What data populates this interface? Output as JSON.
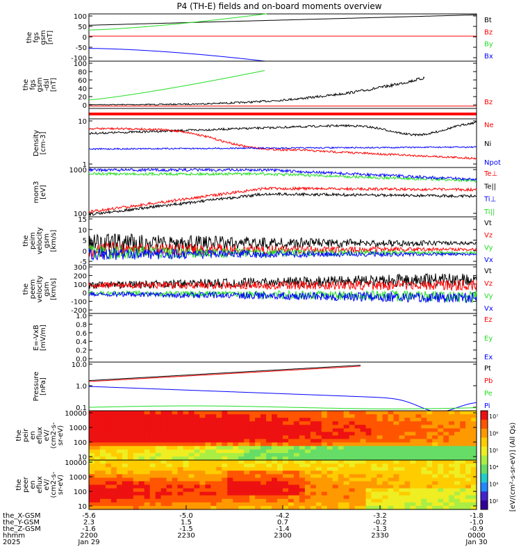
{
  "title": "P4 (TH-E) fields and on-board moments overview",
  "colors": {
    "black": "#000000",
    "red": "#ff0000",
    "green": "#22dd22",
    "blue": "#0000ff"
  },
  "chart_data": [
    {
      "type": "line",
      "ylabel": [
        "the",
        "fgs",
        "gsm",
        "[nT]"
      ],
      "yticks": [
        "100",
        "50",
        "0",
        "-50",
        "-100"
      ],
      "ylim": [
        -100,
        100
      ],
      "legend": [
        {
          "label": "Bt",
          "color": "black"
        },
        {
          "label": "Bz",
          "color": "red"
        },
        {
          "label": "By",
          "color": "green"
        },
        {
          "label": "Bx",
          "color": "blue"
        }
      ]
    },
    {
      "type": "line",
      "ylabel": [
        "the",
        "fgs",
        "gsm",
        "-dsl",
        "[nT]"
      ],
      "yticks": [
        "100",
        "80",
        "60",
        "40",
        "20",
        "0"
      ],
      "ylim": [
        -5,
        110
      ],
      "legend": [
        {
          "label": "Bz",
          "color": "red"
        }
      ]
    },
    {
      "type": "line",
      "ylabel": [
        "Density",
        "[cm-3]"
      ],
      "yticks": [
        "10",
        "1"
      ],
      "scale": "log",
      "legend": [
        {
          "label": "Ne",
          "color": "red"
        },
        {
          "label": "Ni",
          "color": "black"
        },
        {
          "label": "Npot",
          "color": "blue"
        }
      ]
    },
    {
      "type": "line",
      "ylabel": [
        "mom3",
        "[eV]"
      ],
      "yticks": [
        "1000",
        "100"
      ],
      "scale": "log",
      "legend": [
        {
          "label": "Te⊥",
          "color": "red"
        },
        {
          "label": "Te||",
          "color": "black"
        },
        {
          "label": "Ti⊥",
          "color": "blue"
        },
        {
          "label": "Ti||",
          "color": "green"
        }
      ]
    },
    {
      "type": "line",
      "ylabel": [
        "the",
        "peim",
        "velocity",
        "gsm",
        "[km/s]"
      ],
      "yticks": [
        "15",
        "10",
        "5",
        "0",
        "-5"
      ],
      "ylim": [
        -5,
        17
      ],
      "legend": [
        {
          "label": "Vt",
          "color": "black"
        },
        {
          "label": "Vz",
          "color": "red"
        },
        {
          "label": "Vy",
          "color": "green"
        },
        {
          "label": "Vx",
          "color": "blue"
        }
      ]
    },
    {
      "type": "line",
      "ylabel": [
        "the",
        "peem",
        "velocity",
        "gsm",
        "[km/s]"
      ],
      "yticks": [
        "300",
        "200",
        "100",
        "0",
        "-100",
        "-200"
      ],
      "ylim": [
        -250,
        320
      ],
      "legend": [
        {
          "label": "Vt",
          "color": "black"
        },
        {
          "label": "Vz",
          "color": "red"
        },
        {
          "label": "Vy",
          "color": "green"
        },
        {
          "label": "Vx",
          "color": "blue"
        }
      ]
    },
    {
      "type": "line",
      "ylabel": [
        "E=-VxB",
        "[mV/m]"
      ],
      "yticks": [
        "1.0",
        "0.8",
        "0.6",
        "0.4",
        "0.2",
        "0.0"
      ],
      "ylim": [
        0,
        1
      ],
      "legend": [
        {
          "label": "Ez",
          "color": "red"
        },
        {
          "label": "Ey",
          "color": "green"
        },
        {
          "label": "Ex",
          "color": "blue"
        }
      ]
    },
    {
      "type": "line",
      "ylabel": [
        "Pressure",
        "[nPa]"
      ],
      "yticks": [
        "10.0",
        "1.0",
        "0.1"
      ],
      "scale": "log",
      "legend": [
        {
          "label": "Pt",
          "color": "black"
        },
        {
          "label": "Pb",
          "color": "red"
        },
        {
          "label": "Pe",
          "color": "green"
        },
        {
          "label": "Pi",
          "color": "blue"
        }
      ]
    },
    {
      "type": "heatmap",
      "ylabel": [
        "the",
        "peir",
        "en",
        "eflux",
        "eV/",
        "(cm2-s-",
        "sr-eV)"
      ],
      "yticks": [
        "10000",
        "1000",
        "100",
        "10"
      ],
      "scale": "log"
    },
    {
      "type": "heatmap",
      "ylabel": [
        "the",
        "peer",
        "en",
        "eflux",
        "eV/",
        "(cm2-s-",
        "sr-eV)"
      ],
      "yticks": [
        "10000",
        "1000",
        "100",
        "10"
      ],
      "scale": "log"
    }
  ],
  "colorbar": {
    "label": "[eV/(cm²-s-sr-eV)] (All Qs)",
    "ticks": [
      "10⁷",
      "10⁶",
      "10⁵",
      "10⁴",
      "10³",
      "10²"
    ]
  },
  "xaxis": {
    "rows": [
      {
        "label": "the_X-GSM",
        "values": [
          "-5.6",
          "-5.0",
          "-4.2",
          "-3.2",
          "-1.8"
        ]
      },
      {
        "label": "the_Y-GSM",
        "values": [
          "2.3",
          "1.5",
          "0.7",
          "-0.2",
          "-1.0"
        ]
      },
      {
        "label": "the_Z-GSM",
        "values": [
          "-1.6",
          "-1.5",
          "-1.4",
          "-1.3",
          "-0.9"
        ]
      },
      {
        "label": "hhmm",
        "values": [
          "2200",
          "2230",
          "2300",
          "2330",
          "0000"
        ]
      },
      {
        "label": "2025",
        "values": [
          "Jan 29",
          "",
          "",
          "",
          "Jan 30"
        ]
      }
    ]
  }
}
